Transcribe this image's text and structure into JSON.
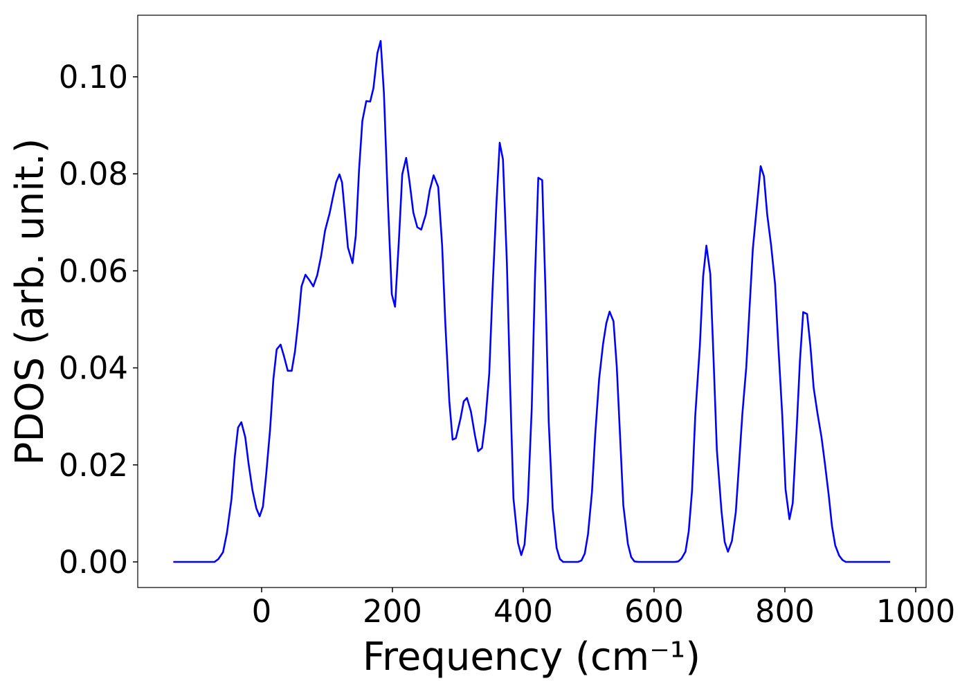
{
  "chart_data": {
    "type": "line",
    "xlabel": "Frequency (cm⁻¹)",
    "ylabel": "PDOS (arb. unit.)",
    "color": "#0000ff",
    "xlim": [
      -189.4,
      1015.9
    ],
    "ylim": [
      -0.00528,
      0.1127
    ],
    "xticks": [
      0,
      200,
      400,
      600,
      800,
      1000
    ],
    "yticks": [
      {
        "value": 0,
        "label": "0.00"
      },
      0.02,
      0.04,
      0.06,
      0.08,
      {
        "value": 0.1,
        "label": "0.10"
      }
    ],
    "x": [
      -135,
      -72,
      -66,
      -59,
      -53,
      -46,
      -41,
      -36,
      -31,
      -25,
      -20,
      -14,
      -8,
      -3,
      2,
      7,
      13,
      18,
      23,
      29,
      34,
      40,
      46,
      51,
      56,
      61,
      67,
      73,
      79,
      85,
      91,
      97,
      104,
      109,
      114,
      119,
      123,
      127,
      132,
      139,
      144,
      149,
      154,
      160,
      166,
      171,
      177,
      182,
      187,
      193,
      199,
      204,
      210,
      215,
      221,
      226,
      232,
      238,
      244,
      251,
      257,
      263,
      270,
      276,
      281,
      287,
      292,
      297,
      304,
      309,
      314,
      320,
      326,
      331,
      337,
      342,
      348,
      353,
      359,
      364,
      369,
      375,
      380,
      385,
      392,
      397,
      402,
      407,
      413,
      418,
      423,
      429,
      434,
      439,
      445,
      451,
      456,
      461,
      484,
      489,
      494,
      499,
      505,
      510,
      516,
      522,
      527,
      532,
      538,
      543,
      548,
      553,
      560,
      565,
      570,
      576,
      632,
      637,
      642,
      648,
      653,
      658,
      663,
      670,
      675,
      680,
      686,
      691,
      696,
      703,
      708,
      713,
      719,
      725,
      730,
      735,
      741,
      746,
      751,
      758,
      763,
      768,
      773,
      779,
      785,
      790,
      796,
      801,
      807,
      812,
      818,
      823,
      828,
      834,
      839,
      844,
      850,
      856,
      861,
      867,
      872,
      877,
      883,
      888,
      893,
      961
    ],
    "values": [
      0,
      0,
      0.0006,
      0.002,
      0.006,
      0.013,
      0.0217,
      0.0277,
      0.0288,
      0.0257,
      0.0203,
      0.0148,
      0.011,
      0.0094,
      0.0114,
      0.0181,
      0.0274,
      0.0377,
      0.0438,
      0.0448,
      0.0425,
      0.0394,
      0.0394,
      0.0434,
      0.0495,
      0.0568,
      0.0592,
      0.0581,
      0.0568,
      0.0591,
      0.0631,
      0.0683,
      0.0719,
      0.0752,
      0.0783,
      0.0799,
      0.0782,
      0.0723,
      0.0648,
      0.0616,
      0.0673,
      0.0809,
      0.0909,
      0.095,
      0.0949,
      0.0977,
      0.1049,
      0.1074,
      0.0966,
      0.0745,
      0.0552,
      0.0526,
      0.0666,
      0.0799,
      0.0833,
      0.0785,
      0.072,
      0.069,
      0.0685,
      0.0716,
      0.0766,
      0.0797,
      0.0773,
      0.0652,
      0.0488,
      0.0331,
      0.0252,
      0.0255,
      0.0295,
      0.0331,
      0.0338,
      0.031,
      0.0262,
      0.0228,
      0.0235,
      0.0288,
      0.0388,
      0.0559,
      0.0738,
      0.0864,
      0.083,
      0.0616,
      0.0359,
      0.0131,
      0.0039,
      0.0014,
      0.0036,
      0.0124,
      0.0317,
      0.0588,
      0.0792,
      0.0787,
      0.0559,
      0.0288,
      0.011,
      0.0029,
      0.0006,
      0,
      0,
      0.0003,
      0.0017,
      0.0057,
      0.0143,
      0.0262,
      0.0377,
      0.0449,
      0.0492,
      0.0516,
      0.0496,
      0.0402,
      0.026,
      0.0117,
      0.0037,
      0.001,
      0.0001,
      0,
      0,
      0.0001,
      0.0007,
      0.0021,
      0.0063,
      0.0146,
      0.0302,
      0.0445,
      0.0588,
      0.0652,
      0.0593,
      0.0417,
      0.0231,
      0.0106,
      0.0041,
      0.0021,
      0.0043,
      0.0103,
      0.0203,
      0.0305,
      0.0402,
      0.0524,
      0.0645,
      0.0745,
      0.0816,
      0.0795,
      0.0716,
      0.0652,
      0.0573,
      0.0445,
      0.0302,
      0.015,
      0.0088,
      0.0121,
      0.0274,
      0.0414,
      0.0515,
      0.0511,
      0.0445,
      0.0359,
      0.0305,
      0.0257,
      0.0205,
      0.0138,
      0.0074,
      0.0034,
      0.0013,
      0.0004,
      0,
      0
    ]
  }
}
